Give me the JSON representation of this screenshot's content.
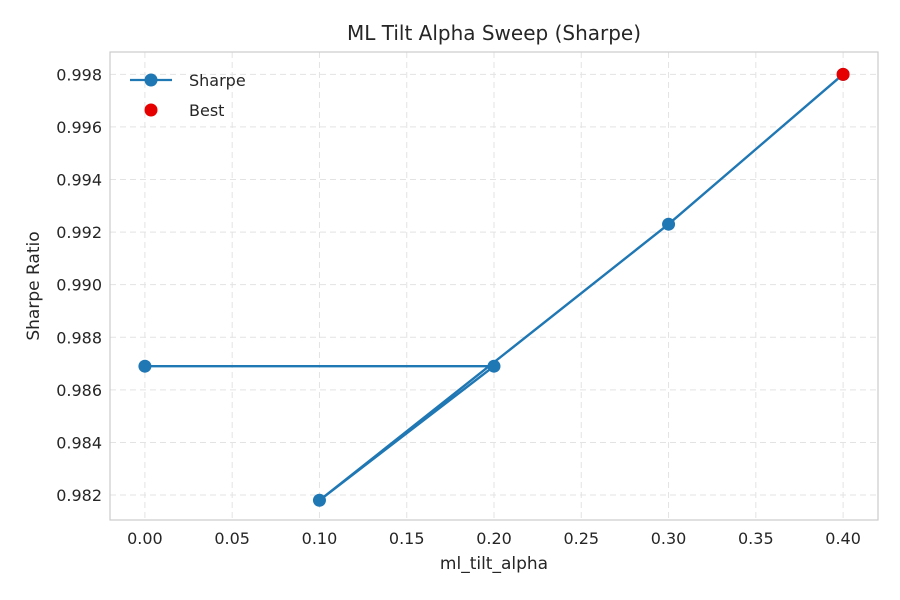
{
  "chart_data": {
    "type": "line",
    "title": "ML Tilt Alpha Sweep (Sharpe)",
    "xlabel": "ml_tilt_alpha",
    "ylabel": "Sharpe Ratio",
    "xlim": [
      -0.02,
      0.42
    ],
    "ylim": [
      0.98105,
      0.99885
    ],
    "xticks": [
      0.0,
      0.05,
      0.1,
      0.15,
      0.2,
      0.25,
      0.3,
      0.35,
      0.4
    ],
    "xtick_labels": [
      "0.00",
      "0.05",
      "0.10",
      "0.15",
      "0.20",
      "0.25",
      "0.30",
      "0.35",
      "0.40"
    ],
    "yticks": [
      0.982,
      0.984,
      0.986,
      0.988,
      0.99,
      0.992,
      0.994,
      0.996,
      0.998
    ],
    "ytick_labels": [
      "0.982",
      "0.984",
      "0.986",
      "0.988",
      "0.990",
      "0.992",
      "0.994",
      "0.996",
      "0.998"
    ],
    "grid": true,
    "legend_position": "top-left",
    "series": [
      {
        "name": "Sharpe",
        "color": "#1f77b4",
        "x": [
          0.0,
          0.2,
          0.1,
          0.3,
          0.4
        ],
        "y": [
          0.9869,
          0.9869,
          0.9818,
          0.9923,
          0.998
        ]
      }
    ],
    "highlight": {
      "name": "Best",
      "color": "#e60000",
      "x": 0.4,
      "y": 0.998
    }
  }
}
